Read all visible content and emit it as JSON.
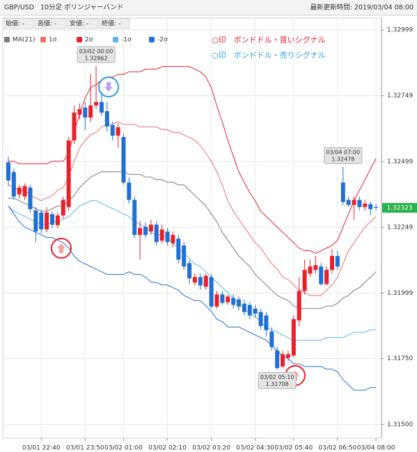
{
  "header": {
    "title": "GBP/USD",
    "timeframe": "10分足",
    "indicator": "ボリンジャーバンド",
    "updated": "最新更新時間: 2019/03/04 08:00"
  },
  "fields": [
    "始値: -",
    "高値: -",
    "安値: -",
    "終値: -"
  ],
  "signals": [
    {
      "text": "○印　ボンドドル・買いシグナル",
      "color": "#e8202a"
    },
    {
      "text": "○印　ボンドドル・売りシグナル",
      "color": "#2a9fe0"
    }
  ],
  "chart_data": {
    "type": "candlestick",
    "categories": [
      null,
      null,
      null,
      null,
      null,
      null,
      "03/01 22:40",
      null,
      null,
      null,
      null,
      null,
      null,
      null,
      "03/01 23:50",
      null,
      null,
      null,
      null,
      null,
      null,
      "03/02 01:00",
      null,
      null,
      null,
      null,
      null,
      null,
      null,
      "03/02 02:10",
      null,
      null,
      null,
      null,
      null,
      null,
      null,
      "03/02 03:20",
      null,
      null,
      null,
      null,
      null,
      null,
      null,
      "03/02 04:30",
      null,
      null,
      null,
      null,
      null,
      null,
      "03/02 05:40",
      null,
      null,
      null,
      null,
      null,
      null,
      null,
      "03/02 06:50",
      null,
      null,
      null,
      null,
      null,
      null,
      "03/04 08:00"
    ],
    "up_color": "#e8202a",
    "down_color": "#1f6fd4",
    "open": [
      1.32496,
      1.32459,
      1.32374,
      1.32366,
      1.324,
      1.32313,
      1.32305,
      1.32241,
      1.32299,
      1.32257,
      1.32294,
      1.32326,
      1.32579,
      1.32677,
      1.32704,
      1.32666,
      1.32712,
      1.32725,
      1.3269,
      1.32637,
      1.32597,
      1.32592,
      1.32419,
      1.32353,
      1.3222,
      1.32251,
      1.32233,
      1.32259,
      1.32198,
      1.32233,
      1.32188,
      1.32206,
      1.3218,
      1.32113,
      1.32039,
      1.3206,
      1.32023,
      1.3206,
      1.31948,
      1.31994,
      1.31964,
      1.3198,
      1.31975,
      1.31959,
      1.31954,
      1.3194,
      1.31927,
      1.31914,
      1.31853,
      1.31781,
      1.3172,
      1.31754,
      1.31762,
      1.31895,
      1.32007,
      1.32073,
      1.32087,
      1.321,
      1.32033,
      1.32087,
      1.3214,
      1.32419,
      1.32353,
      1.32334,
      1.32353,
      1.32326,
      1.32337,
      1.32326
    ],
    "high": [
      1.32518,
      1.32472,
      1.32411,
      1.32416,
      1.32411,
      1.32326,
      1.32315,
      1.32326,
      1.3231,
      1.32305,
      1.32366,
      1.32592,
      1.32712,
      1.3272,
      1.32725,
      1.32831,
      1.32862,
      1.32765,
      1.32725,
      1.32651,
      1.32645,
      1.32605,
      1.32438,
      1.32366,
      1.32273,
      1.32267,
      1.32278,
      1.32273,
      1.32259,
      1.32246,
      1.32233,
      1.3222,
      1.32193,
      1.32126,
      1.32073,
      1.32073,
      1.32073,
      1.32073,
      1.32007,
      1.32007,
      1.31994,
      1.31994,
      1.31986,
      1.31975,
      1.31964,
      1.31954,
      1.3194,
      1.31927,
      1.31869,
      1.31794,
      1.31781,
      1.31781,
      1.31914,
      1.3206,
      1.32126,
      1.32126,
      1.3214,
      1.32113,
      1.321,
      1.32166,
      1.32161,
      1.32478,
      1.32366,
      1.32366,
      1.32366,
      1.32353,
      1.32347,
      1.32337
    ],
    "low": [
      1.32406,
      1.32353,
      1.32358,
      1.32353,
      1.32305,
      1.32193,
      1.32225,
      1.3223,
      1.32246,
      1.32246,
      1.32283,
      1.32313,
      1.32565,
      1.32659,
      1.32619,
      1.32649,
      1.32698,
      1.32672,
      1.32613,
      1.32579,
      1.32552,
      1.32411,
      1.32339,
      1.32207,
      1.32126,
      1.32207,
      1.3222,
      1.3218,
      1.32188,
      1.3218,
      1.32172,
      1.32113,
      1.32087,
      1.32033,
      1.32028,
      1.32012,
      1.32012,
      1.3194,
      1.3194,
      1.31954,
      1.31954,
      1.3194,
      1.31932,
      1.31914,
      1.319,
      1.31906,
      1.31861,
      1.31834,
      1.31781,
      1.31708,
      1.31715,
      1.31741,
      1.31754,
      1.31874,
      1.31994,
      1.3206,
      1.32073,
      1.32028,
      1.32028,
      1.32073,
      1.32087,
      1.32334,
      1.32326,
      1.32278,
      1.32313,
      1.32313,
      1.32294,
      1.32313
    ],
    "close": [
      1.32427,
      1.32366,
      1.324,
      1.32406,
      1.32318,
      1.32233,
      1.32241,
      1.32305,
      1.32259,
      1.32294,
      1.32353,
      1.32579,
      1.32685,
      1.32698,
      1.32666,
      1.32712,
      1.32725,
      1.32685,
      1.32632,
      1.32597,
      1.32629,
      1.32419,
      1.32353,
      1.3222,
      1.32246,
      1.3222,
      1.32259,
      1.32193,
      1.32241,
      1.32193,
      1.3222,
      1.32126,
      1.321,
      1.32055,
      1.3206,
      1.32028,
      1.32065,
      1.31948,
      1.31994,
      1.31962,
      1.31986,
      1.31954,
      1.31948,
      1.31927,
      1.31914,
      1.31921,
      1.31874,
      1.31858,
      1.31794,
      1.31714,
      1.31767,
      1.31767,
      1.319,
      1.32007,
      1.32087,
      1.321,
      1.32105,
      1.32033,
      1.32087,
      1.3214,
      1.321,
      1.32345,
      1.32334,
      1.32353,
      1.32326,
      1.32339,
      1.32318,
      1.32323
    ],
    "series": [
      {
        "name": "MA(21)",
        "color": "#7a7a7a",
        "values": [
          1.3236,
          1.3236,
          1.3235,
          1.3234,
          1.3233,
          1.3232,
          1.3231,
          1.3231,
          1.3232,
          1.3233,
          1.3233,
          1.3235,
          1.3237,
          1.324,
          1.3242,
          1.3244,
          1.3245,
          1.3246,
          1.3246,
          1.3246,
          1.3246,
          1.3246,
          1.3245,
          1.3245,
          1.3245,
          1.3244,
          1.3244,
          1.3243,
          1.3243,
          1.3242,
          1.3242,
          1.3241,
          1.3241,
          1.3239,
          1.3237,
          1.3235,
          1.3233,
          1.323,
          1.3227,
          1.3223,
          1.322,
          1.3217,
          1.3214,
          1.3212,
          1.321,
          1.3207,
          1.3205,
          1.3203,
          1.3201,
          1.3199,
          1.3198,
          1.3197,
          1.3195,
          1.3194,
          1.3194,
          1.3194,
          1.3194,
          1.3194,
          1.3195,
          1.3195,
          1.3196,
          1.3198,
          1.3199,
          1.3201,
          1.3202,
          1.3204,
          1.3206,
          1.3208
        ]
      },
      {
        "name": "1σ",
        "color": "#f26b6b",
        "values": [
          1.3241,
          1.324,
          1.3239,
          1.3239,
          1.3237,
          1.3236,
          1.3235,
          1.3236,
          1.3237,
          1.3239,
          1.324,
          1.3244,
          1.325,
          1.3255,
          1.3258,
          1.326,
          1.3261,
          1.3263,
          1.3264,
          1.3264,
          1.3265,
          1.3264,
          1.3264,
          1.3264,
          1.3263,
          1.3263,
          1.3263,
          1.3263,
          1.3262,
          1.3262,
          1.3261,
          1.3261,
          1.326,
          1.3259,
          1.3258,
          1.3256,
          1.3253,
          1.325,
          1.3246,
          1.3241,
          1.3235,
          1.3231,
          1.3228,
          1.3225,
          1.3222,
          1.3219,
          1.3217,
          1.3214,
          1.3211,
          1.3209,
          1.3206,
          1.3205,
          1.3203,
          1.3201,
          1.32,
          1.3199,
          1.3199,
          1.3199,
          1.3201,
          1.3203,
          1.3206,
          1.3211,
          1.3216,
          1.3219,
          1.3222,
          1.3225,
          1.3227,
          1.3229
        ]
      },
      {
        "name": "2σ",
        "color": "#e8202a",
        "values": [
          1.325,
          1.325,
          1.3249,
          1.3249,
          1.3249,
          1.3249,
          1.3249,
          1.3249,
          1.325,
          1.325,
          1.325,
          1.3253,
          1.3261,
          1.3268,
          1.3274,
          1.3278,
          1.3279,
          1.3281,
          1.3282,
          1.3282,
          1.3283,
          1.3283,
          1.3284,
          1.3284,
          1.3284,
          1.3285,
          1.3285,
          1.3285,
          1.3286,
          1.3286,
          1.3286,
          1.3286,
          1.3286,
          1.3286,
          1.3285,
          1.3284,
          1.3282,
          1.3278,
          1.3271,
          1.3265,
          1.3258,
          1.3252,
          1.3246,
          1.3242,
          1.3238,
          1.3235,
          1.3231,
          1.3229,
          1.3227,
          1.3225,
          1.3223,
          1.3221,
          1.3219,
          1.3217,
          1.3216,
          1.3216,
          1.3215,
          1.3216,
          1.3217,
          1.3218,
          1.322,
          1.3225,
          1.323,
          1.3235,
          1.3239,
          1.3243,
          1.3247,
          1.3251
        ]
      },
      {
        "name": "-1σ",
        "color": "#5ab4f0",
        "values": [
          1.3233,
          1.3231,
          1.323,
          1.3229,
          1.3228,
          1.3227,
          1.3226,
          1.3226,
          1.3227,
          1.3227,
          1.3228,
          1.3229,
          1.3231,
          1.3233,
          1.3234,
          1.3235,
          1.3235,
          1.3234,
          1.3233,
          1.3232,
          1.3231,
          1.323,
          1.3229,
          1.3227,
          1.3226,
          1.3225,
          1.3223,
          1.3222,
          1.3222,
          1.3221,
          1.3219,
          1.3217,
          1.3215,
          1.3213,
          1.3211,
          1.321,
          1.3208,
          1.3206,
          1.3204,
          1.3202,
          1.32,
          1.3198,
          1.3196,
          1.3194,
          1.3192,
          1.3191,
          1.3189,
          1.3187,
          1.3186,
          1.3185,
          1.3184,
          1.3183,
          1.3182,
          1.3182,
          1.3182,
          1.3182,
          1.3182,
          1.3182,
          1.3183,
          1.3183,
          1.3183,
          1.3183,
          1.3184,
          1.3185,
          1.3185,
          1.3185,
          1.3186,
          1.3186
        ]
      },
      {
        "name": "-2σ",
        "color": "#1f6fd4",
        "values": [
          1.3233,
          1.323,
          1.3227,
          1.3225,
          1.3224,
          1.3223,
          1.3222,
          1.3221,
          1.3221,
          1.322,
          1.3219,
          1.3217,
          1.3214,
          1.3212,
          1.3211,
          1.321,
          1.3209,
          1.3208,
          1.3207,
          1.3207,
          1.3207,
          1.3207,
          1.3208,
          1.3207,
          1.3207,
          1.3206,
          1.3204,
          1.3204,
          1.3203,
          1.3203,
          1.3202,
          1.3201,
          1.3199,
          1.3198,
          1.3197,
          1.3197,
          1.3195,
          1.3193,
          1.319,
          1.3189,
          1.3187,
          1.3187,
          1.3187,
          1.3186,
          1.3185,
          1.3184,
          1.3183,
          1.3182,
          1.318,
          1.3178,
          1.3176,
          1.3175,
          1.3173,
          1.3173,
          1.3172,
          1.3172,
          1.3172,
          1.3172,
          1.3171,
          1.3171,
          1.317,
          1.3167,
          1.3165,
          1.3163,
          1.3163,
          1.3163,
          1.3164,
          1.3164
        ]
      }
    ],
    "annotations": [
      {
        "time": "03/02 00:00",
        "value": 1.32862
      },
      {
        "time": "03/02 05:10",
        "value": 1.31708
      },
      {
        "time": "03/04 07:00",
        "value": 1.32478
      }
    ],
    "last_price_color": "#2bb24c",
    "ylim": [
      1.31448,
      1.33044
    ],
    "yticks": [
      1.32999,
      1.32749,
      1.32499,
      1.32249,
      1.31999,
      {
        "value": 1.3175,
        "label": "1.31750"
      },
      {
        "value": 1.315,
        "label": "1.31500"
      }
    ],
    "grid": true
  }
}
